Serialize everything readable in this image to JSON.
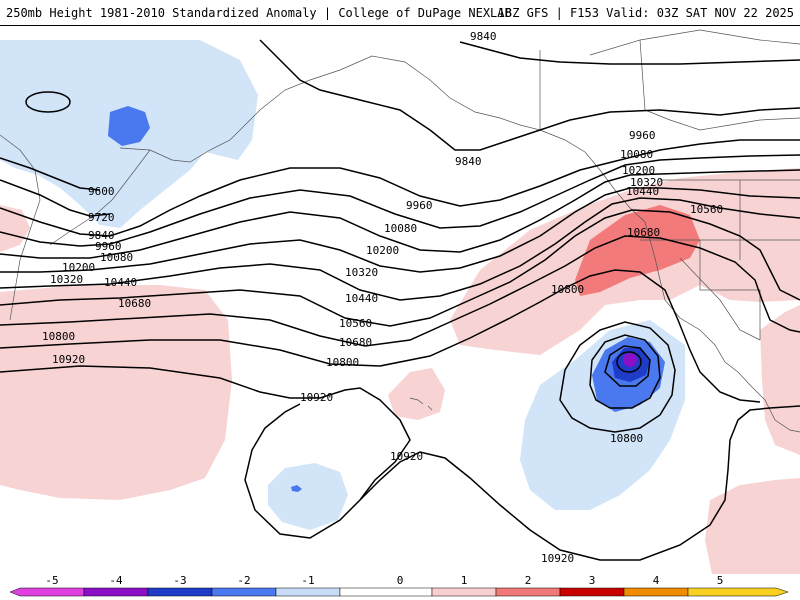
{
  "header": {
    "title_left": "250mb Height 1981-2010 Standardized Anomaly | College of DuPage NEXLAB",
    "title_right": "18Z GFS | F153 Valid: 03Z SAT NOV 22 2025"
  },
  "contour_labels": {
    "c9840_north": "9840",
    "c9960_ne": "9960",
    "c10080_ne": "10080",
    "c10200_ne": "10200",
    "c10320_ne": "10320",
    "c10440_ne": "10440",
    "c10560_ne": "10560",
    "c10680_ne": "10680",
    "c9840_gulf": "9840",
    "c9960_mid": "9960",
    "c10080_mid": "10080",
    "c10200_mid": "10200",
    "c10320_mid": "10320",
    "c10440_mid": "10440",
    "c10560_mid": "10560",
    "c10680_mid": "10680",
    "c10800_mid": "10800",
    "c10800_east": "10800",
    "c10800_low": "10800",
    "c10920_center": "10920",
    "c10920_hawaii": "10920",
    "c10920_south": "10920",
    "c9600_west": "9600",
    "c9720_west": "9720",
    "c9840_west": "9840",
    "c9960_west": "9960",
    "c10080_west": "10080",
    "c10200_west": "10200",
    "c10320_west": "10320",
    "c10440_west": "10440",
    "c10680_west": "10680",
    "c10800_west": "10800",
    "c10920_west": "10920"
  },
  "colorbar": {
    "ticks": [
      "-5",
      "-4",
      "-3",
      "-2",
      "-1",
      "0",
      "1",
      "2",
      "3",
      "4",
      "5"
    ],
    "colors": {
      "n5": "#e040e0",
      "n4": "#8a10c8",
      "n3": "#1e3cc8",
      "n2": "#4a78ee",
      "n1": "#c8dcf8",
      "zero": "#ffffff",
      "p1": "#f8d0d0",
      "p2": "#f07878",
      "p3": "#c80000",
      "p4": "#f08c00",
      "p5": "#f8d020"
    }
  },
  "colors": {
    "neg1": "#d2e4f8",
    "neg2": "#4a78ee",
    "neg3": "#1e3cc8",
    "neg4": "#8a10c8",
    "pos1": "#f8d3d3",
    "pos2": "#f27a7a",
    "contour": "#000000",
    "coast": "#444444"
  }
}
